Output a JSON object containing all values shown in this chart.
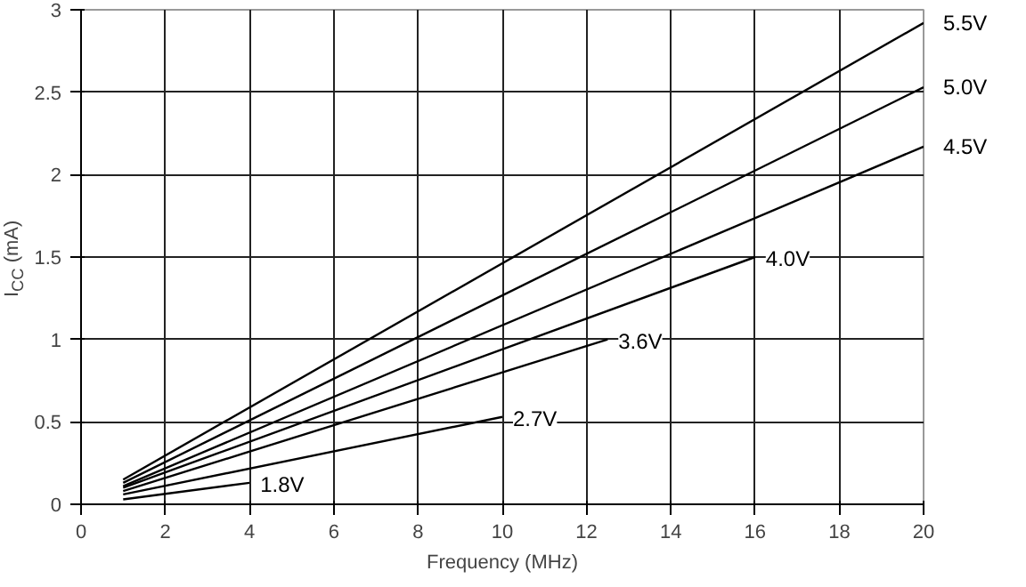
{
  "chart_data": {
    "type": "line",
    "xlabel": "Frequency (MHz)",
    "ylabel": "I$_{CC}$ (mA)",
    "xlim": [
      0,
      20
    ],
    "ylim": [
      0,
      3
    ],
    "xticks": [
      0,
      2,
      4,
      6,
      8,
      10,
      12,
      14,
      16,
      18,
      20
    ],
    "yticks": [
      0,
      0.5,
      1,
      1.5,
      2,
      2.5,
      3
    ],
    "grid": true,
    "series": [
      {
        "name": "5.5V",
        "color": "#000000",
        "x": [
          1,
          20
        ],
        "values": [
          0.15,
          2.92
        ]
      },
      {
        "name": "5.0V",
        "color": "#000000",
        "x": [
          1,
          20
        ],
        "values": [
          0.13,
          2.53
        ]
      },
      {
        "name": "4.5V",
        "color": "#000000",
        "x": [
          1,
          20
        ],
        "values": [
          0.11,
          2.17
        ]
      },
      {
        "name": "4.0V",
        "color": "#000000",
        "x": [
          1,
          16
        ],
        "values": [
          0.1,
          1.5
        ]
      },
      {
        "name": "3.6V",
        "color": "#000000",
        "x": [
          1,
          12.5
        ],
        "values": [
          0.08,
          1.0
        ]
      },
      {
        "name": "2.7V",
        "color": "#000000",
        "x": [
          1,
          10
        ],
        "values": [
          0.06,
          0.53
        ]
      },
      {
        "name": "1.8V",
        "color": "#000000",
        "x": [
          1,
          4
        ],
        "values": [
          0.03,
          0.13
        ]
      }
    ]
  }
}
